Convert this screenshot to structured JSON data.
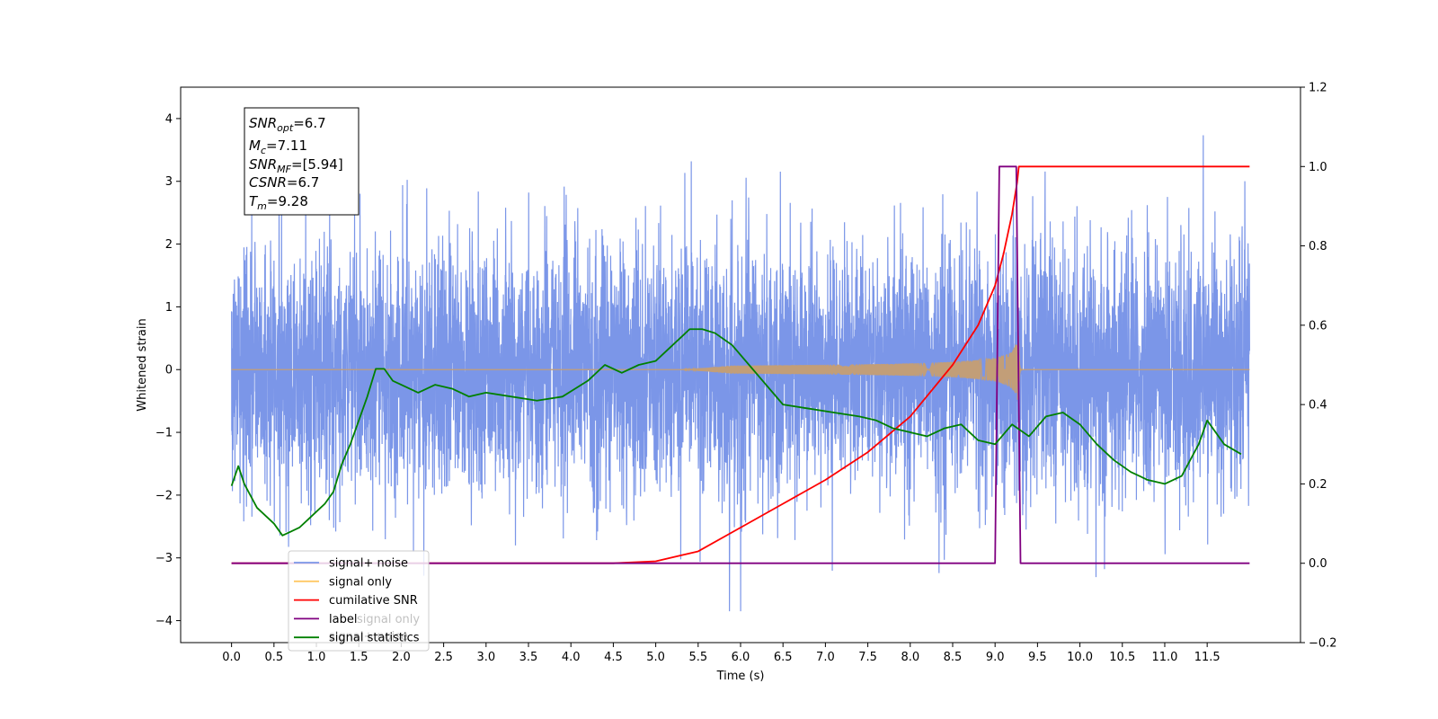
{
  "chart_data": {
    "type": "line",
    "xlabel": "Time (s)",
    "ylabel": "Whitened strain",
    "xlim": [
      -0.6,
      12.6
    ],
    "ylim": [
      -4.35,
      4.5
    ],
    "y2lim": [
      -0.2,
      1.2
    ],
    "x_ticks": [
      "0.0",
      "0.5",
      "1.0",
      "1.5",
      "2.0",
      "2.5",
      "3.0",
      "3.5",
      "4.0",
      "4.5",
      "5.0",
      "5.5",
      "6.0",
      "6.5",
      "7.0",
      "7.5",
      "8.0",
      "8.5",
      "9.0",
      "9.5",
      "10.0",
      "10.5",
      "11.0",
      "11.5"
    ],
    "y_ticks": [
      "-4",
      "-3",
      "-2",
      "-1",
      "0",
      "1",
      "2",
      "3",
      "4"
    ],
    "y2_ticks": [
      "-0.2",
      "0.0",
      "0.2",
      "0.4",
      "0.6",
      "0.8",
      "1.0",
      "1.2"
    ],
    "legend": {
      "placement": "lower-left",
      "entries": [
        {
          "label": "signal+ noise",
          "color": "#7b96e8"
        },
        {
          "label": "signal only",
          "color": "#ffc864"
        },
        {
          "label": "cumilative SNR",
          "color": "#ff0000"
        },
        {
          "label": "label",
          "color": "#800080"
        },
        {
          "label": "signal statistics",
          "color": "#008000"
        }
      ],
      "hidden_entries": [
        "signal only",
        "signal+ noise"
      ]
    },
    "info_box": {
      "snr_opt": {
        "main": "SNR",
        "sub": "opt",
        "value": "=6.7"
      },
      "mc": {
        "main": "M",
        "sub": "c",
        "value": "=7.11"
      },
      "snr_mf": {
        "main": "SNR",
        "sub": "MF",
        "value": "=[5.94]"
      },
      "csnr": {
        "main": "CSNR",
        "value": "=6.7"
      },
      "tm": {
        "main": "T",
        "sub": "m",
        "value": "=9.28"
      }
    },
    "series": [
      {
        "name": "signal+ noise",
        "axis": "left",
        "color": "#7b96e8",
        "x_range": [
          0,
          12
        ],
        "envelope_sigma": 1.0,
        "peak_max": 4.12,
        "peak_min": -3.85
      },
      {
        "name": "signal only",
        "axis": "left",
        "color": "#c29e78",
        "x_start": 5.3,
        "x_peak": 9.28,
        "peak_amplitude": 0.6
      },
      {
        "name": "cumilative SNR",
        "axis": "right",
        "color": "#ff0000",
        "x": [
          0,
          4.5,
          5.0,
          5.5,
          6.0,
          6.5,
          7.0,
          7.5,
          8.0,
          8.5,
          8.8,
          9.0,
          9.1,
          9.2,
          9.26,
          9.28,
          12.0
        ],
        "y": [
          0.0,
          0.0,
          0.005,
          0.03,
          0.09,
          0.15,
          0.21,
          0.28,
          0.37,
          0.5,
          0.6,
          0.7,
          0.78,
          0.88,
          0.96,
          1.0,
          1.0
        ]
      },
      {
        "name": "label",
        "axis": "right",
        "color": "#800080",
        "x": [
          0,
          9.0,
          9.05,
          9.25,
          9.3,
          12.0
        ],
        "y": [
          0.0,
          0.0,
          1.0,
          1.0,
          0.0,
          0.0
        ]
      },
      {
        "name": "signal statistics",
        "axis": "right",
        "color": "#008000",
        "x": [
          0,
          0.08,
          0.15,
          0.3,
          0.5,
          0.6,
          0.7,
          0.8,
          0.9,
          1.0,
          1.1,
          1.2,
          1.3,
          1.4,
          1.5,
          1.6,
          1.7,
          1.8,
          1.9,
          2.0,
          2.2,
          2.4,
          2.6,
          2.8,
          3.0,
          3.3,
          3.6,
          3.9,
          4.2,
          4.4,
          4.6,
          4.8,
          5.0,
          5.2,
          5.4,
          5.55,
          5.7,
          5.9,
          6.1,
          6.3,
          6.5,
          6.8,
          7.1,
          7.4,
          7.6,
          7.8,
          8.0,
          8.2,
          8.4,
          8.6,
          8.8,
          9.0,
          9.2,
          9.4,
          9.6,
          9.8,
          10.0,
          10.2,
          10.4,
          10.6,
          10.8,
          11.0,
          11.2,
          11.4,
          11.5,
          11.7,
          11.9
        ],
        "y": [
          0.195,
          0.245,
          0.2,
          0.14,
          0.1,
          0.07,
          0.08,
          0.09,
          0.11,
          0.13,
          0.15,
          0.18,
          0.25,
          0.3,
          0.36,
          0.42,
          0.49,
          0.49,
          0.46,
          0.45,
          0.43,
          0.45,
          0.44,
          0.42,
          0.43,
          0.42,
          0.41,
          0.42,
          0.46,
          0.5,
          0.48,
          0.5,
          0.51,
          0.55,
          0.59,
          0.59,
          0.58,
          0.55,
          0.5,
          0.45,
          0.4,
          0.39,
          0.38,
          0.37,
          0.36,
          0.34,
          0.33,
          0.32,
          0.34,
          0.35,
          0.31,
          0.3,
          0.35,
          0.32,
          0.37,
          0.38,
          0.35,
          0.3,
          0.26,
          0.23,
          0.21,
          0.2,
          0.22,
          0.3,
          0.36,
          0.3,
          0.275
        ]
      }
    ]
  }
}
